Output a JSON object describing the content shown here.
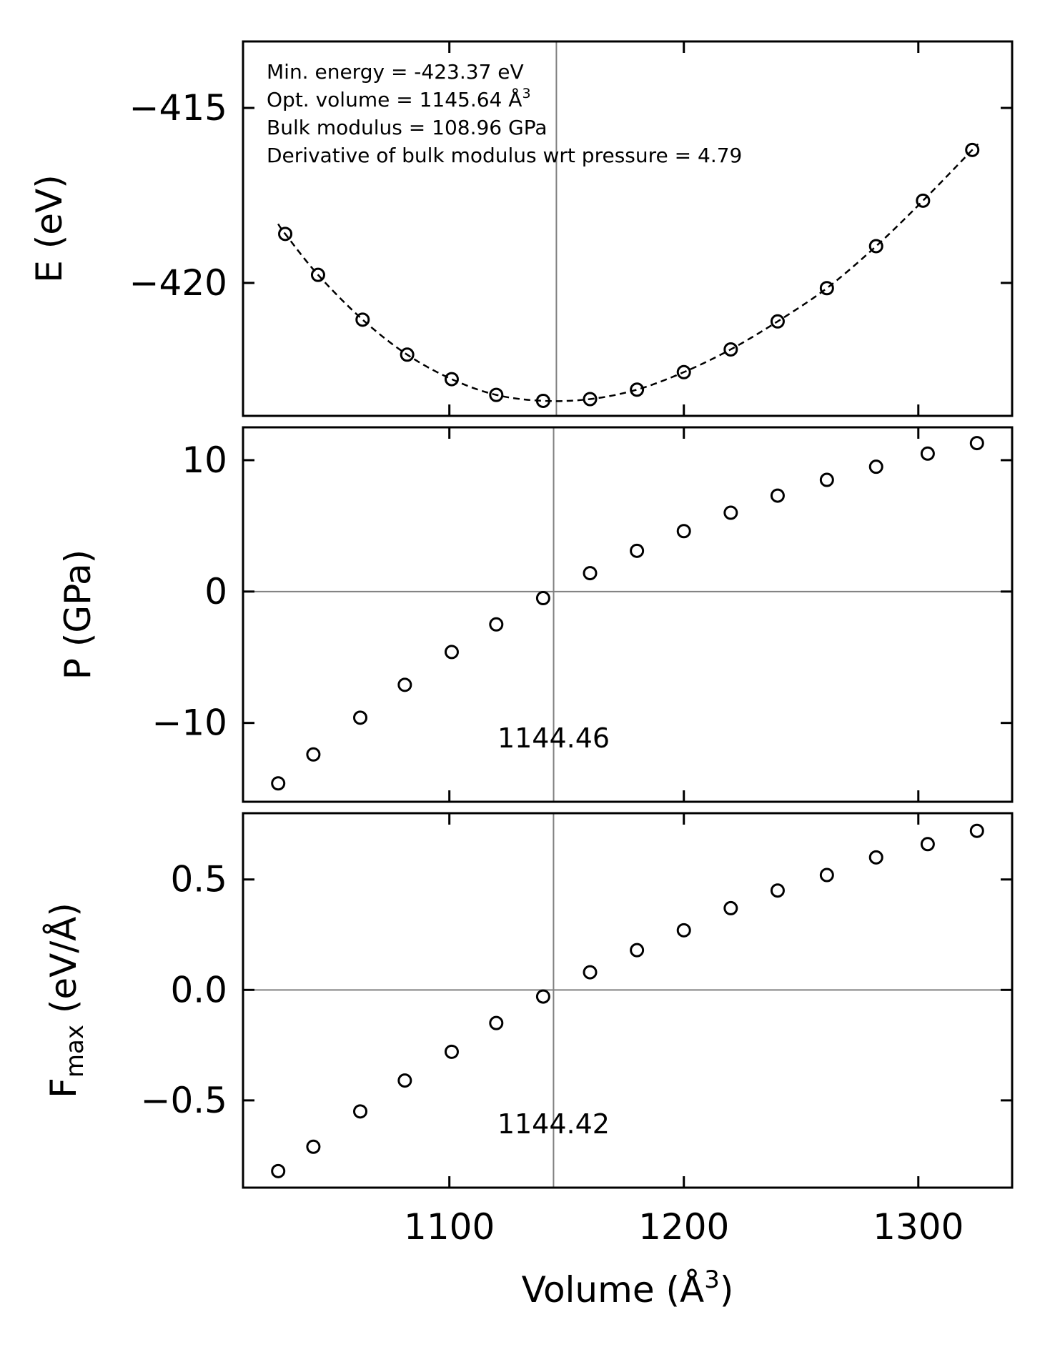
{
  "chart_data": [
    {
      "type": "scatter",
      "id": "energy",
      "ylabel": "E (eV)",
      "xlim": [
        1012,
        1340
      ],
      "ylim": [
        -423.8,
        -413.1
      ],
      "yticks": [
        -415,
        -420
      ],
      "ytick_labels": [
        "−415",
        "−420"
      ],
      "xticks": [
        1100,
        1200,
        1300
      ],
      "show_xtick_labels": false,
      "vline": 1145.64,
      "hline": null,
      "fit_curve": true,
      "x": [
        1030,
        1044,
        1063,
        1082,
        1101,
        1120,
        1140,
        1160,
        1180,
        1200,
        1220,
        1240,
        1261,
        1282,
        1302,
        1323
      ],
      "y": [
        -418.6,
        -419.77,
        -421.05,
        -422.05,
        -422.75,
        -423.2,
        -423.37,
        -423.32,
        -423.05,
        -422.55,
        -421.9,
        -421.1,
        -420.15,
        -418.95,
        -417.65,
        -416.2
      ],
      "annotations": [
        "Min. energy = -423.37 eV",
        "Opt. volume = 1145.64 Å",
        "Bulk modulus = 108.96 GPa",
        "Derivative of bulk modulus wrt pressure = 4.79"
      ],
      "annotation_superscript": "3"
    },
    {
      "type": "scatter",
      "id": "pressure",
      "ylabel": "P (GPa)",
      "xlim": [
        1012,
        1340
      ],
      "ylim": [
        -16,
        12.5
      ],
      "yticks": [
        10,
        0,
        -10
      ],
      "ytick_labels": [
        "10",
        "0",
        "−10"
      ],
      "xticks": [
        1100,
        1200,
        1300
      ],
      "show_xtick_labels": false,
      "vline": 1144.46,
      "vline_label": "1144.46",
      "hline": 0,
      "fit_curve": false,
      "x": [
        1027,
        1042,
        1062,
        1081,
        1101,
        1120,
        1140,
        1160,
        1180,
        1200,
        1220,
        1240,
        1261,
        1282,
        1304,
        1325
      ],
      "y": [
        -14.6,
        -12.4,
        -9.6,
        -7.1,
        -4.6,
        -2.5,
        -0.5,
        1.4,
        3.1,
        4.6,
        6.0,
        7.3,
        8.5,
        9.5,
        10.5,
        11.3
      ]
    },
    {
      "type": "scatter",
      "id": "force",
      "ylabel": "F",
      "ylabel_subscript": "max",
      "ylabel_suffix": " (eV/Å)",
      "xlabel": "Volume (Å",
      "xlabel_superscript": "3",
      "xlabel_suffix": ")",
      "xlim": [
        1012,
        1340
      ],
      "ylim": [
        -0.895,
        0.8
      ],
      "yticks": [
        0.5,
        0.0,
        -0.5
      ],
      "ytick_labels": [
        "0.5",
        "0.0",
        "−0.5"
      ],
      "xticks": [
        1100,
        1200,
        1300
      ],
      "xtick_labels": [
        "1100",
        "1200",
        "1300"
      ],
      "show_xtick_labels": true,
      "vline": 1144.42,
      "vline_label": "1144.42",
      "hline": 0,
      "fit_curve": false,
      "x": [
        1027,
        1042,
        1062,
        1081,
        1101,
        1120,
        1140,
        1160,
        1180,
        1200,
        1220,
        1240,
        1261,
        1282,
        1304,
        1325
      ],
      "y": [
        -0.82,
        -0.71,
        -0.55,
        -0.41,
        -0.28,
        -0.15,
        -0.03,
        0.08,
        0.18,
        0.27,
        0.37,
        0.45,
        0.52,
        0.6,
        0.66,
        0.72
      ]
    }
  ]
}
